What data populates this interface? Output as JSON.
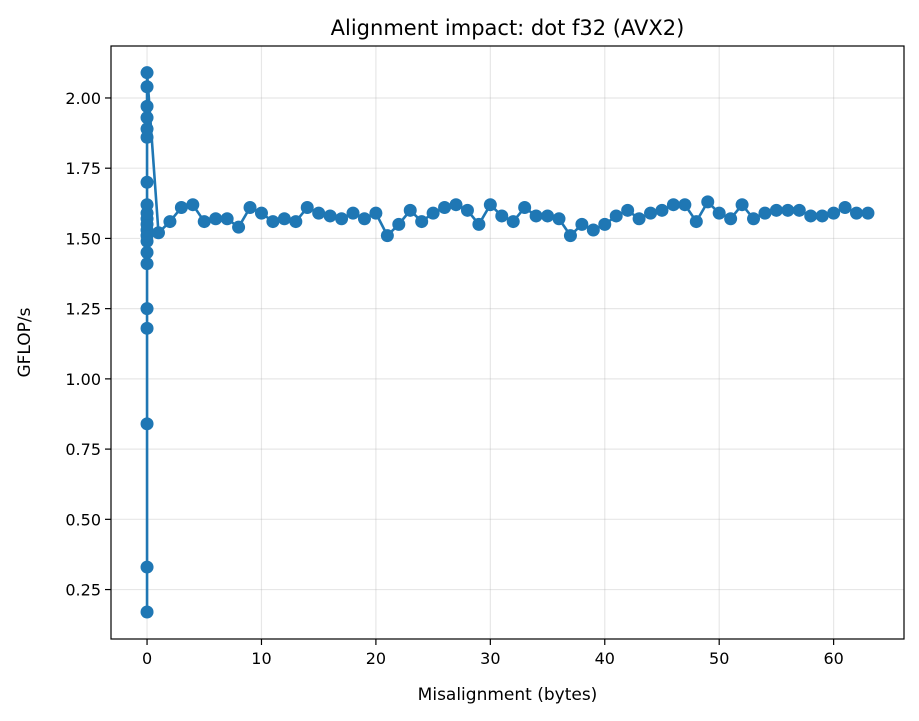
{
  "chart_data": {
    "type": "line",
    "title": "Alignment impact: dot f32 (AVX2)",
    "xlabel": "Misalignment (bytes)",
    "ylabel": "GFLOP/s",
    "xlim": [
      -3.15,
      66.15
    ],
    "ylim": [
      0.074,
      2.185
    ],
    "xticks": [
      0,
      10,
      20,
      30,
      40,
      50,
      60
    ],
    "yticks": [
      0.25,
      0.5,
      0.75,
      1.0,
      1.25,
      1.5,
      1.75,
      2.0
    ],
    "xtick_labels": [
      "0",
      "10",
      "20",
      "30",
      "40",
      "50",
      "60"
    ],
    "ytick_labels": [
      "0.25",
      "0.50",
      "0.75",
      "1.00",
      "1.25",
      "1.50",
      "1.75",
      "2.00"
    ],
    "grid": true,
    "series": [
      {
        "color": "#1f77b4",
        "marker": "circle",
        "x": [
          0,
          0,
          0,
          0,
          0,
          0,
          0,
          0,
          0,
          0,
          0,
          0,
          0,
          0,
          0,
          0,
          0,
          0,
          0,
          0,
          0,
          1,
          2,
          3,
          4,
          5,
          6,
          7,
          8,
          9,
          10,
          11,
          12,
          13,
          14,
          15,
          16,
          17,
          18,
          19,
          20,
          21,
          22,
          23,
          24,
          25,
          26,
          27,
          28,
          29,
          30,
          31,
          32,
          33,
          34,
          35,
          36,
          37,
          38,
          39,
          40,
          41,
          42,
          43,
          44,
          45,
          46,
          47,
          48,
          49,
          50,
          51,
          52,
          53,
          54,
          55,
          56,
          57,
          58,
          59,
          60,
          61,
          62,
          63
        ],
        "y": [
          0.17,
          0.33,
          0.84,
          1.18,
          1.25,
          1.41,
          1.45,
          1.49,
          1.51,
          1.53,
          1.55,
          1.57,
          1.59,
          1.62,
          1.7,
          1.86,
          1.89,
          1.93,
          1.97,
          2.04,
          2.09,
          1.52,
          1.56,
          1.61,
          1.62,
          1.56,
          1.57,
          1.57,
          1.54,
          1.61,
          1.59,
          1.56,
          1.57,
          1.56,
          1.61,
          1.59,
          1.58,
          1.57,
          1.59,
          1.57,
          1.59,
          1.51,
          1.55,
          1.6,
          1.56,
          1.59,
          1.61,
          1.62,
          1.6,
          1.55,
          1.62,
          1.58,
          1.56,
          1.61,
          1.58,
          1.58,
          1.57,
          1.51,
          1.55,
          1.53,
          1.55,
          1.58,
          1.6,
          1.57,
          1.59,
          1.6,
          1.62,
          1.62,
          1.56,
          1.63,
          1.59,
          1.57,
          1.62,
          1.57,
          1.59,
          1.6,
          1.6,
          1.6,
          1.58,
          1.58,
          1.59,
          1.61,
          1.59,
          1.59
        ]
      }
    ]
  }
}
